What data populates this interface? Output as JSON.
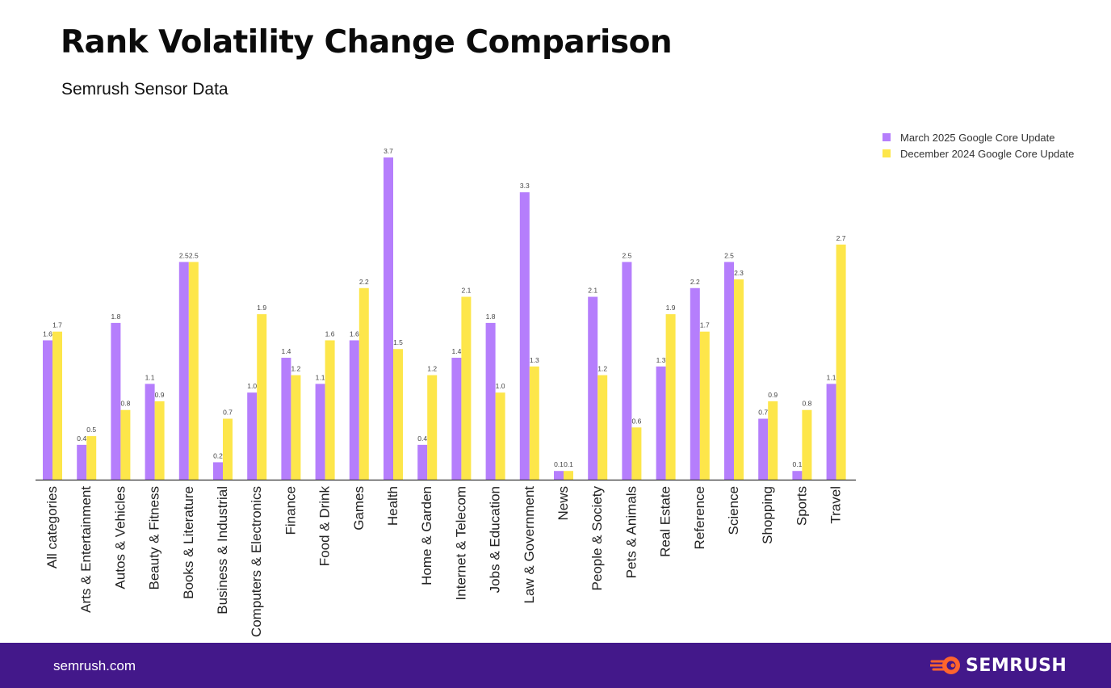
{
  "title": "Rank Volatility Change Comparison",
  "subtitle": "Semrush Sensor Data",
  "colors": {
    "march": "#b57efc",
    "december": "#fde64a",
    "footer": "#43188a",
    "logo_orange": "#ff642d"
  },
  "chart_data": {
    "type": "bar",
    "title": "Rank Volatility Change Comparison",
    "xlabel": "",
    "ylabel": "",
    "ylim": [
      0,
      3.7
    ],
    "categories": [
      "All categories",
      "Arts & Entertainment",
      "Autos & Vehicles",
      "Beauty & Fitness",
      "Books & Literature",
      "Business & Industrial",
      "Computers & Electronics",
      "Finance",
      "Food & Drink",
      "Games",
      "Health",
      "Home & Garden",
      "Internet & Telecom",
      "Jobs & Education",
      "Law & Government",
      "News",
      "People & Society",
      "Pets & Animals",
      "Real Estate",
      "Reference",
      "Science",
      "Shopping",
      "Sports",
      "Travel"
    ],
    "series": [
      {
        "name": "March 2025 Google Core Update",
        "values": [
          1.6,
          0.4,
          1.8,
          1.1,
          2.5,
          0.2,
          1.0,
          1.4,
          1.1,
          1.6,
          3.7,
          0.4,
          1.4,
          1.8,
          3.3,
          0.1,
          2.1,
          2.5,
          1.3,
          2.2,
          2.5,
          0.7,
          0.1,
          1.1
        ],
        "labels": [
          "1.6",
          "0.4",
          "1.8",
          "1.1",
          "2.5",
          "0.2",
          "1.0",
          "1.4",
          "1.1",
          "1.6",
          "3.7",
          "0.4",
          "1.4",
          "1.8",
          "3.3",
          "0.1",
          "2.1",
          "2.5",
          "1.3",
          "2.2",
          "2.5",
          "0.7",
          "0.1",
          "1.1"
        ]
      },
      {
        "name": "December 2024 Google Core Update",
        "values": [
          1.7,
          0.5,
          0.8,
          0.9,
          2.5,
          0.7,
          1.9,
          1.2,
          1.6,
          2.2,
          1.5,
          1.2,
          2.1,
          1.0,
          1.3,
          0.1,
          1.2,
          0.6,
          1.9,
          1.7,
          2.3,
          0.9,
          0.8,
          2.7
        ],
        "labels": [
          "1.7",
          "0.5",
          "0.8",
          "0.9",
          "2.5",
          "0.7",
          "1.9",
          "1.2",
          "1.6",
          "2.2",
          "1.5",
          "1.2",
          "2.1",
          "1.0",
          "1.3",
          "0.1",
          "1.2",
          "0.6",
          "1.9",
          "1.7",
          "2.3",
          "0.9",
          "0.8",
          "2.7"
        ]
      }
    ],
    "legend_position": "top-right"
  },
  "footer": {
    "url": "semrush.com",
    "brand": "SEMRUSH"
  }
}
